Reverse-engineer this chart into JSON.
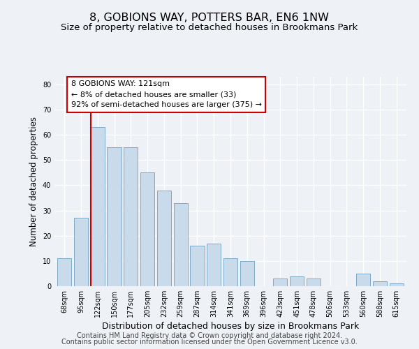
{
  "title": "8, GOBIONS WAY, POTTERS BAR, EN6 1NW",
  "subtitle": "Size of property relative to detached houses in Brookmans Park",
  "xlabel": "Distribution of detached houses by size in Brookmans Park",
  "ylabel": "Number of detached properties",
  "bar_labels": [
    "68sqm",
    "95sqm",
    "122sqm",
    "150sqm",
    "177sqm",
    "205sqm",
    "232sqm",
    "259sqm",
    "287sqm",
    "314sqm",
    "341sqm",
    "369sqm",
    "396sqm",
    "423sqm",
    "451sqm",
    "478sqm",
    "506sqm",
    "533sqm",
    "560sqm",
    "588sqm",
    "615sqm"
  ],
  "bar_values": [
    11,
    27,
    63,
    55,
    55,
    45,
    38,
    33,
    16,
    17,
    11,
    10,
    0,
    3,
    4,
    3,
    0,
    0,
    5,
    2,
    1
  ],
  "bar_color": "#c9daea",
  "bar_edge_color": "#7aaac8",
  "highlight_index": 2,
  "highlight_line_color": "#cc0000",
  "ylim": [
    0,
    83
  ],
  "yticks": [
    0,
    10,
    20,
    30,
    40,
    50,
    60,
    70,
    80
  ],
  "box_text_line1": "8 GOBIONS WAY: 121sqm",
  "box_text_line2": "← 8% of detached houses are smaller (33)",
  "box_text_line3": "92% of semi-detached houses are larger (375) →",
  "box_color": "#ffffff",
  "box_edge_color": "#cc0000",
  "footer_line1": "Contains HM Land Registry data © Crown copyright and database right 2024.",
  "footer_line2": "Contains public sector information licensed under the Open Government Licence v3.0.",
  "bg_color": "#eef2f7",
  "title_fontsize": 11.5,
  "subtitle_fontsize": 9.5,
  "xlabel_fontsize": 9,
  "ylabel_fontsize": 8.5,
  "tick_fontsize": 7,
  "annotation_fontsize": 8,
  "footer_fontsize": 7
}
